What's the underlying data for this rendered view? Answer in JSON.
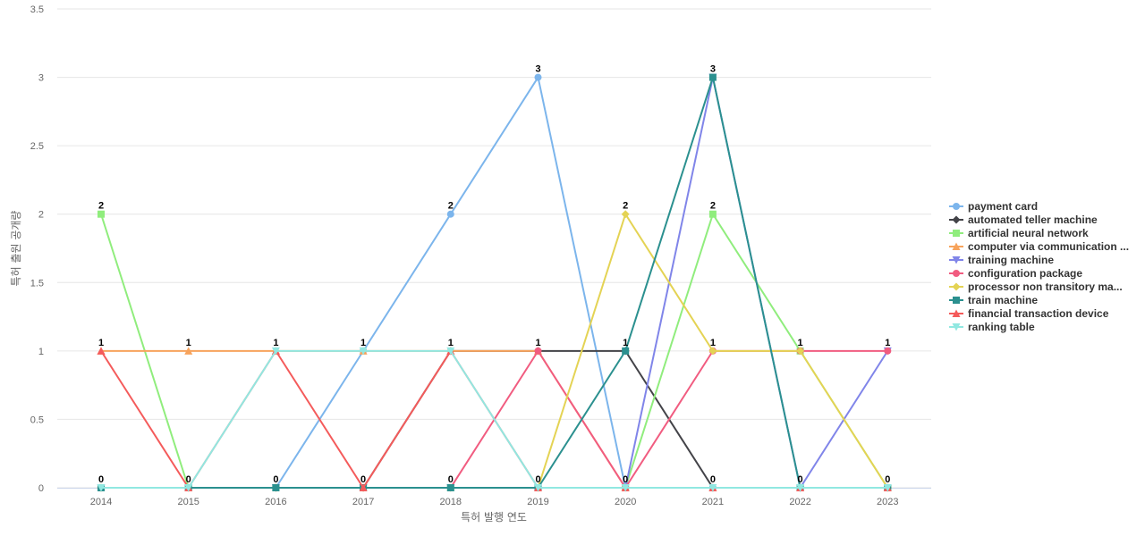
{
  "chart_data": {
    "type": "line",
    "title": "",
    "xlabel": "특허 발행 연도",
    "ylabel": "특허 출원 공개량",
    "x": [
      "2014",
      "2015",
      "2016",
      "2017",
      "2018",
      "2019",
      "2020",
      "2021",
      "2022",
      "2023"
    ],
    "yticks": [
      "0",
      "0.5",
      "1",
      "1.5",
      "2",
      "2.5",
      "3",
      "3.5"
    ],
    "ylim": [
      0,
      3.5
    ],
    "grid": true,
    "legend_position": "right",
    "series": [
      {
        "name": "payment card",
        "color": "#7cb5ec",
        "marker": "circle",
        "values": [
          0,
          0,
          0,
          1,
          2,
          3,
          0,
          0,
          0,
          0
        ]
      },
      {
        "name": "automated teller machine",
        "color": "#434348",
        "marker": "diamond",
        "values": [
          0,
          0,
          0,
          0,
          1,
          1,
          1,
          0,
          0,
          0
        ]
      },
      {
        "name": "artificial neural network",
        "color": "#90ed7d",
        "marker": "square",
        "values": [
          2,
          0,
          0,
          0,
          0,
          0,
          0,
          2,
          1,
          0
        ]
      },
      {
        "name": "computer via communication ...",
        "color": "#f7a35c",
        "marker": "triangle",
        "values": [
          1,
          1,
          1,
          1,
          1,
          1,
          0,
          0,
          0,
          0
        ]
      },
      {
        "name": "training machine",
        "color": "#8085e9",
        "marker": "triangle-down",
        "values": [
          0,
          0,
          0,
          0,
          0,
          0,
          0,
          3,
          0,
          1
        ]
      },
      {
        "name": "configuration package",
        "color": "#f15c80",
        "marker": "circle",
        "values": [
          0,
          0,
          0,
          0,
          0,
          1,
          0,
          1,
          1,
          1
        ]
      },
      {
        "name": "processor non transitory ma...",
        "color": "#e4d354",
        "marker": "diamond",
        "values": [
          0,
          0,
          0,
          0,
          0,
          0,
          2,
          1,
          1,
          0
        ]
      },
      {
        "name": "train machine",
        "color": "#2b908f",
        "marker": "square",
        "values": [
          0,
          0,
          0,
          0,
          0,
          0,
          1,
          3,
          0,
          0
        ]
      },
      {
        "name": "financial transaction device",
        "color": "#f45b5b",
        "marker": "triangle",
        "values": [
          1,
          0,
          1,
          0,
          1,
          0,
          0,
          0,
          0,
          0
        ]
      },
      {
        "name": "ranking table",
        "color": "#91e8e1",
        "marker": "triangle-down",
        "values": [
          0,
          0,
          1,
          1,
          1,
          0,
          0,
          0,
          0,
          0
        ]
      }
    ],
    "point_labels": [
      {
        "x": "2014",
        "top": "2",
        "bottom": "0"
      },
      {
        "x": "2015",
        "top": "1",
        "bottom": "0"
      },
      {
        "x": "2016",
        "top": "1",
        "bottom": "0"
      },
      {
        "x": "2017",
        "top": "1",
        "bottom": "0"
      },
      {
        "x": "2018",
        "top": "2",
        "bottom": "0"
      },
      {
        "x": "2019",
        "top": "3",
        "bottom": "0"
      },
      {
        "x": "2020",
        "top": "2",
        "bottom": "0"
      },
      {
        "x": "2021",
        "top": "3",
        "bottom": "0"
      },
      {
        "x": "2022",
        "top": "1",
        "bottom": "0"
      },
      {
        "x": "2023",
        "top": "1",
        "bottom": "0"
      }
    ],
    "mid_labels": [
      {
        "x": "2014",
        "value": "1"
      },
      {
        "x": "2018",
        "value": "1"
      },
      {
        "x": "2019",
        "value": "1"
      },
      {
        "x": "2020",
        "value": "1"
      },
      {
        "x": "2021",
        "value": "2"
      },
      {
        "x": "2021",
        "value": "1"
      }
    ]
  }
}
